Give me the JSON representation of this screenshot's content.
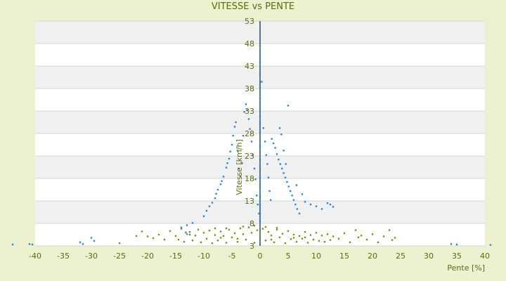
{
  "chart_data": {
    "type": "scatter",
    "title": "VITESSE vs PENTE",
    "xlabel": "Pente [%]",
    "ylabel": "Vitesse [km/h]",
    "xlim": [
      -40,
      40
    ],
    "ylim": [
      3,
      53
    ],
    "x_ticks": [
      -40,
      -35,
      -30,
      -25,
      -20,
      -15,
      -10,
      -5,
      0,
      5,
      10,
      15,
      20,
      25,
      30,
      35,
      40
    ],
    "y_ticks": [
      3,
      8,
      13,
      18,
      23,
      28,
      33,
      38,
      43,
      48,
      53
    ],
    "grid": "horizontal bands",
    "legend": "none",
    "colors": {
      "background": "#ecf2cf",
      "band_light": "#ffffff",
      "band_dark": "#f0f0f0",
      "text": "#5b6b0e",
      "axis": "#1d4f6b",
      "series_blue": "#2f86d6",
      "series_olive": "#8a8a1c"
    },
    "series": [
      {
        "color": "#2f86d6",
        "points": [
          [
            -44,
            3.3
          ],
          [
            -41,
            3.4
          ],
          [
            -40.5,
            3.3
          ],
          [
            -32,
            3.8
          ],
          [
            -31.5,
            3.4
          ],
          [
            -30,
            4.8
          ],
          [
            -29.5,
            4.1
          ],
          [
            -14,
            7.1
          ],
          [
            -13,
            7.6
          ],
          [
            -12,
            8.1
          ],
          [
            -10,
            9.6
          ],
          [
            -9.5,
            10.8
          ],
          [
            -9,
            11.8
          ],
          [
            -8.5,
            12.6
          ],
          [
            -8,
            13.6
          ],
          [
            -7.8,
            14.6
          ],
          [
            -7.5,
            15.5
          ],
          [
            -7,
            16.7
          ],
          [
            -6.8,
            17.4
          ],
          [
            -6.5,
            18.4
          ],
          [
            -6,
            20.4
          ],
          [
            -5.8,
            21.4
          ],
          [
            -5.5,
            22.4
          ],
          [
            -5.3,
            24
          ],
          [
            -5,
            25.5
          ],
          [
            -4.8,
            27.5
          ],
          [
            -4.5,
            29.5
          ],
          [
            -4.3,
            30.5
          ],
          [
            -4,
            24.2
          ],
          [
            -3.8,
            20.2
          ],
          [
            -3.5,
            18.5
          ],
          [
            -3.3,
            21.5
          ],
          [
            -3,
            27.5
          ],
          [
            -2.8,
            32.8
          ],
          [
            -2.5,
            34.5
          ],
          [
            -2.3,
            33.2
          ],
          [
            -2,
            31.2
          ],
          [
            -1.8,
            29
          ],
          [
            -1.5,
            26.2
          ],
          [
            -1.3,
            23.2
          ],
          [
            -1,
            20.2
          ],
          [
            -0.8,
            17.8
          ],
          [
            -0.6,
            14.2
          ],
          [
            -0.4,
            12.2
          ],
          [
            -0.2,
            10.2
          ],
          [
            0,
            31.8
          ],
          [
            0,
            30.2
          ],
          [
            0,
            28.2
          ],
          [
            0,
            25.2
          ],
          [
            0,
            22.2
          ],
          [
            0,
            20.2
          ],
          [
            0,
            18.2
          ],
          [
            0,
            16.2
          ],
          [
            0,
            14.2
          ],
          [
            0,
            12.2
          ],
          [
            0,
            10.2
          ],
          [
            0,
            8.5
          ],
          [
            0,
            33.5
          ],
          [
            0,
            35.8
          ],
          [
            0,
            38.2
          ],
          [
            0,
            41.2
          ],
          [
            0,
            43.8
          ],
          [
            0,
            47.5
          ],
          [
            0.3,
            39.5
          ],
          [
            0.6,
            29.2
          ],
          [
            0.9,
            26.2
          ],
          [
            1.1,
            23.2
          ],
          [
            1.3,
            21.2
          ],
          [
            1.5,
            18.2
          ],
          [
            1.7,
            15.2
          ],
          [
            1.9,
            13.2
          ],
          [
            2.1,
            26.8
          ],
          [
            2.4,
            25.8
          ],
          [
            2.7,
            24.8
          ],
          [
            3,
            23.4
          ],
          [
            3.3,
            22.2
          ],
          [
            3.6,
            21.2
          ],
          [
            3.9,
            20.2
          ],
          [
            4.2,
            19.2
          ],
          [
            4.5,
            18.2
          ],
          [
            4.8,
            17.2
          ],
          [
            5.1,
            16.2
          ],
          [
            5.4,
            15.2
          ],
          [
            5.7,
            14.2
          ],
          [
            6,
            13.2
          ],
          [
            6.3,
            12.2
          ],
          [
            6.6,
            11.2
          ],
          [
            7,
            10.2
          ],
          [
            3.5,
            29.2
          ],
          [
            3.8,
            27.8
          ],
          [
            4.2,
            24.2
          ],
          [
            4.6,
            21.2
          ],
          [
            5,
            34.2
          ],
          [
            6.5,
            16.5
          ],
          [
            7.5,
            14.5
          ],
          [
            8,
            12.8
          ],
          [
            9,
            12.2
          ],
          [
            10,
            11.8
          ],
          [
            11,
            11.2
          ],
          [
            12,
            12.5
          ],
          [
            12.5,
            12.2
          ],
          [
            13,
            11.7
          ],
          [
            -13.2,
            6
          ],
          [
            -12.5,
            5.5
          ],
          [
            34,
            3.4
          ],
          [
            35,
            3.3
          ],
          [
            41,
            3.2
          ]
        ]
      },
      {
        "color": "#8a8a1c",
        "points": [
          [
            -25,
            3.6
          ],
          [
            -22,
            5.2
          ],
          [
            -21,
            6.2
          ],
          [
            -20,
            5.1
          ],
          [
            -19,
            4.7
          ],
          [
            -18,
            5.5
          ],
          [
            -17,
            4.4
          ],
          [
            -16,
            6.3
          ],
          [
            -15,
            5.2
          ],
          [
            -14.5,
            4.4
          ],
          [
            -14,
            6.8
          ],
          [
            -13.5,
            3.9
          ],
          [
            -13,
            5.6
          ],
          [
            -12.5,
            6.1
          ],
          [
            -12,
            4.2
          ],
          [
            -11.5,
            5.3
          ],
          [
            -11,
            6.6
          ],
          [
            -10.5,
            3.8
          ],
          [
            -10,
            5.9
          ],
          [
            -9.5,
            4.6
          ],
          [
            -9,
            6.4
          ],
          [
            -8.5,
            3.6
          ],
          [
            -8,
            5.4
          ],
          [
            -7.5,
            4.2
          ],
          [
            -7,
            6.2
          ],
          [
            -6.5,
            5.2
          ],
          [
            -6,
            3.7
          ],
          [
            -5.5,
            6.6
          ],
          [
            -5,
            4.9
          ],
          [
            -4.5,
            5.8
          ],
          [
            -4,
            3.9
          ],
          [
            -3.5,
            6.9
          ],
          [
            -3,
            5.6
          ],
          [
            -2.5,
            4.4
          ],
          [
            -2,
            7.1
          ],
          [
            -1.5,
            5.9
          ],
          [
            -1,
            3.7
          ],
          [
            -0.5,
            6.5
          ],
          [
            0,
            5.4
          ],
          [
            0.5,
            6.8
          ],
          [
            1,
            4.2
          ],
          [
            1.5,
            6.1
          ],
          [
            2,
            5.3
          ],
          [
            2.5,
            3.8
          ],
          [
            3,
            6.6
          ],
          [
            3.5,
            4.9
          ],
          [
            4,
            5.7
          ],
          [
            4.5,
            3.6
          ],
          [
            5,
            6.3
          ],
          [
            5.5,
            4.5
          ],
          [
            6,
            5.5
          ],
          [
            6.5,
            3.9
          ],
          [
            7,
            5.2
          ],
          [
            7.5,
            4.6
          ],
          [
            8,
            6.1
          ],
          [
            8.5,
            3.7
          ],
          [
            9,
            5.4
          ],
          [
            9.5,
            4.4
          ],
          [
            10,
            5.9
          ],
          [
            10.5,
            4.1
          ],
          [
            11,
            5.3
          ],
          [
            11.5,
            3.9
          ],
          [
            12,
            5.6
          ],
          [
            12.5,
            4.3
          ],
          [
            13,
            5.1
          ],
          [
            14,
            4.6
          ],
          [
            15,
            5.8
          ],
          [
            16,
            3.8
          ],
          [
            17,
            6.5
          ],
          [
            17.5,
            4.9
          ],
          [
            18,
            5.3
          ],
          [
            19,
            4.4
          ],
          [
            20,
            5.6
          ],
          [
            21,
            3.8
          ],
          [
            22,
            5.1
          ],
          [
            23,
            6.5
          ],
          [
            23.5,
            4.3
          ],
          [
            24,
            4.8
          ],
          [
            -8,
            6.9
          ],
          [
            -6,
            6.9
          ],
          [
            -3,
            7.3
          ],
          [
            -1,
            7.5
          ],
          [
            1,
            7.2
          ],
          [
            3,
            7.0
          ],
          [
            -4,
            4.6
          ],
          [
            2,
            4.4
          ],
          [
            6,
            4.8
          ],
          [
            -7,
            4.8
          ],
          [
            8,
            4.9
          ]
        ]
      }
    ]
  }
}
